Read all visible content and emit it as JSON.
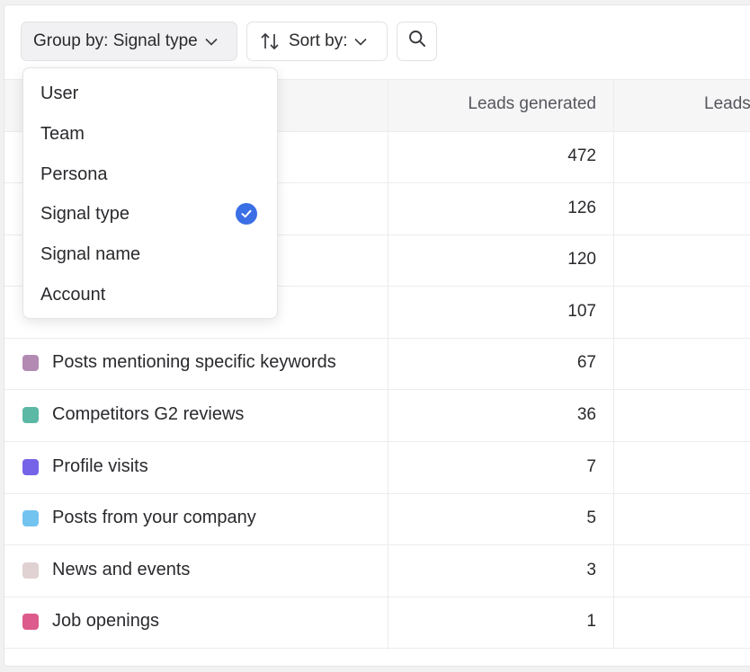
{
  "toolbar": {
    "group_by_label": "Group by: Signal type",
    "sort_by_label": "Sort by:"
  },
  "table": {
    "headers": [
      "Leads generated",
      "Leads"
    ],
    "rows": [
      {
        "name": "",
        "value": "472",
        "color": ""
      },
      {
        "name": "",
        "value": "126",
        "color": ""
      },
      {
        "name": "",
        "value": "120",
        "color": ""
      },
      {
        "name": "",
        "value": "107",
        "color": ""
      },
      {
        "name": "Posts mentioning specific keywords",
        "value": "67",
        "color": "#b38ab2"
      },
      {
        "name": "Competitors G2 reviews",
        "value": "36",
        "color": "#5bb8a4"
      },
      {
        "name": "Profile visits",
        "value": "7",
        "color": "#7563e8"
      },
      {
        "name": "Posts from your company",
        "value": "5",
        "color": "#72c3f0"
      },
      {
        "name": "News and events",
        "value": "3",
        "color": "#e0d2d2"
      },
      {
        "name": "Job openings",
        "value": "1",
        "color": "#dc5a8c"
      }
    ]
  },
  "dropdown": {
    "options": [
      {
        "label": "User",
        "selected": false
      },
      {
        "label": "Team",
        "selected": false
      },
      {
        "label": "Persona",
        "selected": false
      },
      {
        "label": "Signal type",
        "selected": true
      },
      {
        "label": "Signal name",
        "selected": false
      },
      {
        "label": "Account",
        "selected": false
      }
    ],
    "check_color": "#3b6fe6"
  },
  "icons": {
    "chevron": "chevron-down-icon",
    "sort": "sort-arrows-icon",
    "search": "search-icon",
    "check": "check-circle-icon"
  }
}
